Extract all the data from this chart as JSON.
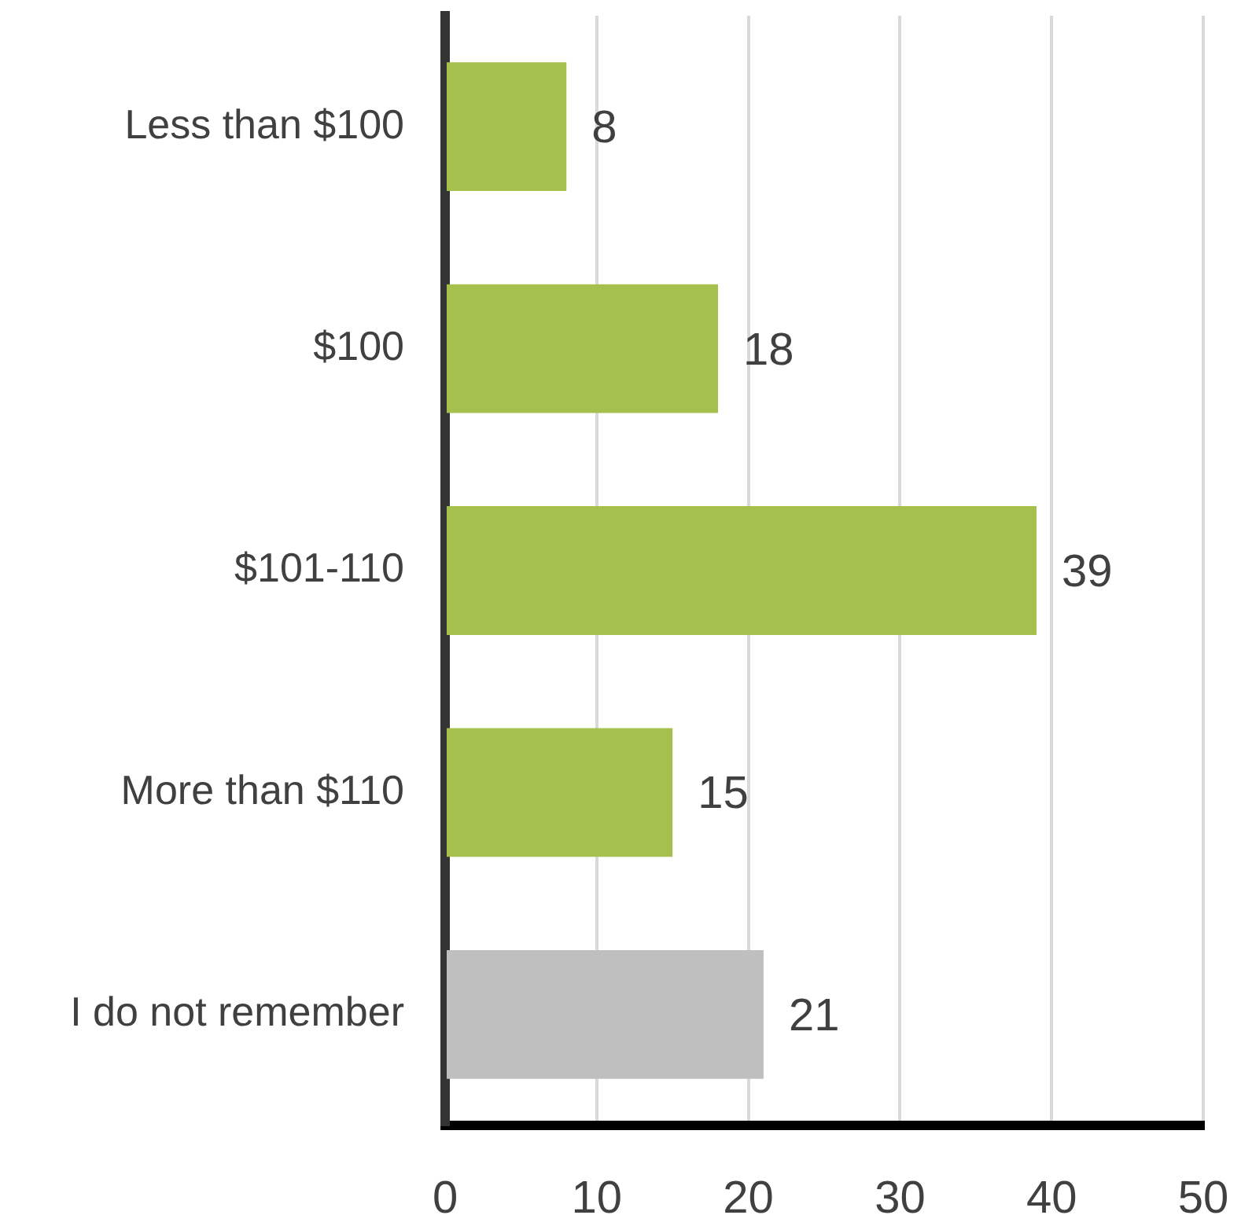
{
  "chart_data": {
    "type": "bar",
    "orientation": "horizontal",
    "categories": [
      "Less than $100",
      "$100",
      "$101-110",
      "More than $110",
      "I do not remember"
    ],
    "values": [
      8,
      18,
      39,
      15,
      21
    ],
    "colors": [
      "#a5c04d",
      "#a5c04d",
      "#a5c04d",
      "#a5c04d",
      "#bfbfbf"
    ],
    "xlim": [
      0,
      50
    ],
    "xticks": [
      0,
      10,
      20,
      30,
      40,
      50
    ],
    "grid": "x",
    "data_labels": true,
    "legend": false
  }
}
